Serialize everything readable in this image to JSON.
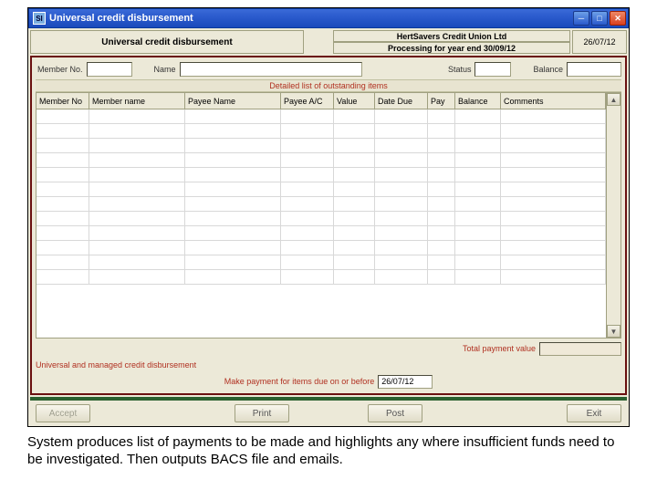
{
  "window": {
    "title": "Universal credit disbursement",
    "icon_label": "SI"
  },
  "header": {
    "app_title": "Universal credit disbursement",
    "org_name": "HertSavers Credit Union Ltd",
    "processing_label": "Processing for year end 30/09/12",
    "date": "26/07/12"
  },
  "filter": {
    "member_no_label": "Member No.",
    "name_label": "Name",
    "status_label": "Status",
    "balance_label": "Balance"
  },
  "section_title": "Detailed list of outstanding items",
  "grid": {
    "columns": [
      "Member No",
      "Member name",
      "Payee Name",
      "Payee A/C",
      "Value",
      "Date Due",
      "Pay",
      "Balance",
      "Comments"
    ],
    "row_count": 12
  },
  "totals": {
    "label": "Total payment value"
  },
  "footer_notice": "Universal and managed credit disbursement",
  "make_payment": {
    "label": "Make payment for items due on or before",
    "date": "26/07/12"
  },
  "buttons": {
    "accept": "Accept",
    "print": "Print",
    "post": "Post",
    "exit": "Exit"
  },
  "caption": "System produces list of payments to be made and highlights any where insufficient funds need to be investigated. Then outputs BACS file and emails.",
  "colors": {
    "titlebar_grad_top": "#3a6ad8",
    "titlebar_grad_bot": "#1a4abb",
    "panel_bg": "#ece9d8",
    "maroon_border": "#6a1010",
    "red_text": "#b03020",
    "green_bar": "#2a6030"
  }
}
